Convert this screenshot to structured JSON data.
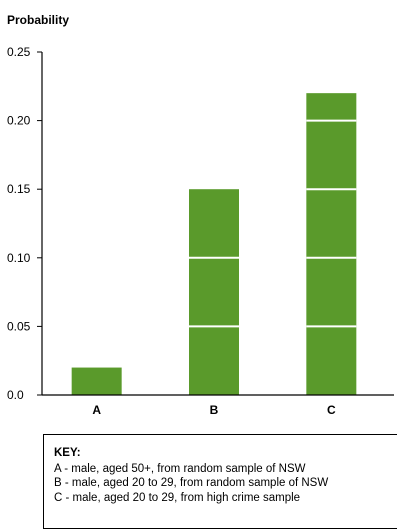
{
  "chart_data": {
    "type": "bar",
    "ylabel": "Probability",
    "categories": [
      "A",
      "B",
      "C"
    ],
    "values": [
      0.02,
      0.15,
      0.22
    ],
    "ylim": [
      0,
      0.25
    ],
    "yticks": [
      "0.0",
      "0.05",
      "0.10",
      "0.15",
      "0.20",
      "0.25"
    ],
    "ytick_values": [
      0,
      0.05,
      0.1,
      0.15,
      0.2,
      0.25
    ],
    "segment_step": 0.05,
    "bar_color": "#5a9a2b",
    "segment_line_color": "#ffffff",
    "grid": false,
    "legend": "below"
  },
  "key": {
    "title": "KEY:",
    "items": [
      "A - male, aged 50+, from random sample of NSW",
      "B - male, aged 20 to 29, from random sample of NSW",
      "C - male, aged 20 to 29, from high crime sample"
    ]
  }
}
